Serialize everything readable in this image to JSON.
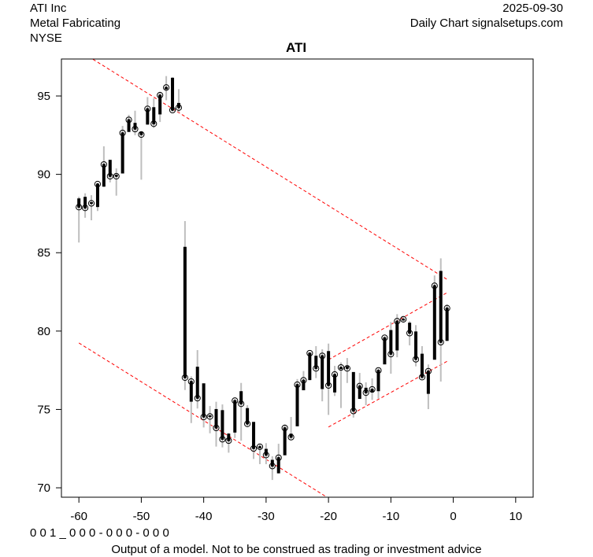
{
  "header": {
    "company": "ATI Inc",
    "industry": "Metal Fabricating",
    "exchange": "NYSE",
    "date": "2025-09-30",
    "source": "Daily Chart signalsetups.com"
  },
  "footer": {
    "code": "0 0 1 _ 0 0 0 - 0 0 0 - 0 0 0",
    "disclaimer": "Output of a model. Not to be construed as trading or investment advice"
  },
  "colors": {
    "body": "#000000",
    "wick": "#bebebe",
    "trendline": "#ff0000"
  },
  "chart_data": {
    "type": "ohlc",
    "title": "ATI",
    "xlabel": "",
    "ylabel": "",
    "xlim": [
      -62.8,
      12.8
    ],
    "ylim": [
      69.4,
      97.36
    ],
    "xticks": [
      -60,
      -50,
      -40,
      -30,
      -20,
      -10,
      0,
      10
    ],
    "yticks": [
      70,
      75,
      80,
      85,
      90,
      95
    ],
    "grid": false,
    "x": [
      -60,
      -59,
      -58,
      -57,
      -56,
      -55,
      -54,
      -53,
      -52,
      -51,
      -50,
      -49,
      -48,
      -47,
      -46,
      -45,
      -44,
      -43,
      -42,
      -41,
      -40,
      -39,
      -38,
      -37,
      -36,
      -35,
      -34,
      -33,
      -32,
      -31,
      -30,
      -29,
      -28,
      -27,
      -26,
      -25,
      -24,
      -23,
      -22,
      -21,
      -20,
      -19,
      -18,
      -17,
      -16,
      -15,
      -14,
      -13,
      -12,
      -11,
      -10,
      -9,
      -8,
      -7,
      -6,
      -5,
      -4,
      -3,
      -2,
      -1
    ],
    "open": [
      88.44,
      88.54,
      88.2,
      87.94,
      89.24,
      90.9,
      89.95,
      90.08,
      92.73,
      93.26,
      92.7,
      93.2,
      94.26,
      93.85,
      95.45,
      96.14,
      94.53,
      85.35,
      75.52,
      77.7,
      76.64,
      74.6,
      75.0,
      74.93,
      73.43,
      73.55,
      76.14,
      75.06,
      74.18,
      72.55,
      72.46,
      71.76,
      70.95,
      72.1,
      73.43,
      73.95,
      76.25,
      76.9,
      78.4,
      76.33,
      78.7,
      76.11,
      77.6,
      77.73,
      77.36,
      75.7,
      76.36,
      76.1,
      76.19,
      77.9,
      80.04,
      78.79,
      80.7,
      80.51,
      79.95,
      78.53,
      76.02,
      78.2,
      83.81,
      79.4
    ],
    "high": [
      88.57,
      88.79,
      88.67,
      89.4,
      91.79,
      90.92,
      90.38,
      93.09,
      93.8,
      94.06,
      92.76,
      94.93,
      94.85,
      95.27,
      96.27,
      96.19,
      95.44,
      87.02,
      77.11,
      78.79,
      76.64,
      75.22,
      75.49,
      75.32,
      73.51,
      75.69,
      76.69,
      75.27,
      74.18,
      72.76,
      72.85,
      72.01,
      72.81,
      74.05,
      74.52,
      76.94,
      77.45,
      78.62,
      79.04,
      78.84,
      79.2,
      77.78,
      78.0,
      78.28,
      77.36,
      77.33,
      76.73,
      76.98,
      77.62,
      79.67,
      80.58,
      81.08,
      80.96,
      80.63,
      80.38,
      79.04,
      77.87,
      83.55,
      84.64,
      81.71
    ],
    "low": [
      85.65,
      87.23,
      87.07,
      87.66,
      89.2,
      89.49,
      88.64,
      90.08,
      92.73,
      92.5,
      89.66,
      93.18,
      92.96,
      93.34,
      94.73,
      94.0,
      93.96,
      76.24,
      74.13,
      75.06,
      73.85,
      73.48,
      72.63,
      72.58,
      72.24,
      73.18,
      73.01,
      73.93,
      71.84,
      71.51,
      71.51,
      70.5,
      70.92,
      72.09,
      73.1,
      73.93,
      76.23,
      76.86,
      77.0,
      75.52,
      74.65,
      75.86,
      75.09,
      76.69,
      74.48,
      75.69,
      75.27,
      75.61,
      75.69,
      77.9,
      77.28,
      78.33,
      80.58,
      79.09,
      77.75,
      76.94,
      75.02,
      78.2,
      76.78,
      79.37
    ],
    "close": [
      87.91,
      87.86,
      88.15,
      89.38,
      90.63,
      89.88,
      89.88,
      92.64,
      93.48,
      92.89,
      92.54,
      94.18,
      93.23,
      95.05,
      95.54,
      94.1,
      94.26,
      77.03,
      76.78,
      75.72,
      74.52,
      74.55,
      73.82,
      73.1,
      73.01,
      75.56,
      75.36,
      74.08,
      72.51,
      72.62,
      72.09,
      71.39,
      71.92,
      73.82,
      73.23,
      76.58,
      76.86,
      78.59,
      77.62,
      78.42,
      76.53,
      77.23,
      77.68,
      77.62,
      74.9,
      76.49,
      76.07,
      76.28,
      77.49,
      79.57,
      78.53,
      80.63,
      80.75,
      79.87,
      78.2,
      77.06,
      77.44,
      82.89,
      79.29,
      81.46
    ],
    "trendlines": [
      {
        "name": "upper-resistance",
        "x": [
          -60,
          -1
        ],
        "y": [
          97.9,
          83.3
        ]
      },
      {
        "name": "lower-support",
        "x": [
          -60,
          -1
        ],
        "y": [
          79.24,
          64.64
        ]
      },
      {
        "name": "channel-upper",
        "x": [
          -20,
          -1
        ],
        "y": [
          78.17,
          82.45
        ]
      },
      {
        "name": "channel-lower",
        "x": [
          -20,
          -1
        ],
        "y": [
          73.88,
          78.07
        ]
      }
    ]
  }
}
